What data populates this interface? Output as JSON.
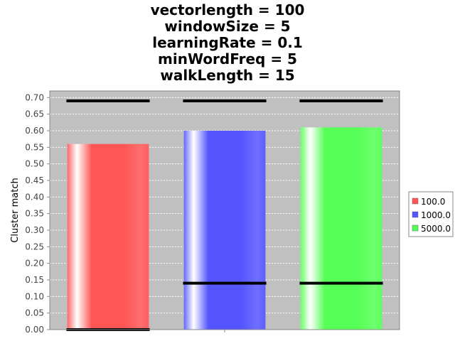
{
  "chart_data": {
    "type": "bar",
    "title": [
      "vectorlength = 100",
      "windowSize = 5",
      "learningRate = 0.1",
      "minWordFreq = 5",
      "walkLength = 15"
    ],
    "xlabel": "",
    "ylabel": "Cluster match",
    "ylim": [
      0,
      0.72
    ],
    "yticks": [
      "0.00",
      "0.05",
      "0.10",
      "0.15",
      "0.20",
      "0.25",
      "0.30",
      "0.35",
      "0.40",
      "0.45",
      "0.50",
      "0.55",
      "0.60",
      "0.65",
      "0.70"
    ],
    "grid": true,
    "legend_position": "right",
    "series": [
      {
        "name": "100.0",
        "value": 0.56,
        "min": 0.0,
        "max": 0.69,
        "color": "#ff5555"
      },
      {
        "name": "1000.0",
        "value": 0.6,
        "min": 0.14,
        "max": 0.69,
        "color": "#5555ff"
      },
      {
        "name": "5000.0",
        "value": 0.61,
        "min": 0.14,
        "max": 0.69,
        "color": "#55ff55"
      }
    ],
    "plot_background": "#c0c0c0"
  }
}
